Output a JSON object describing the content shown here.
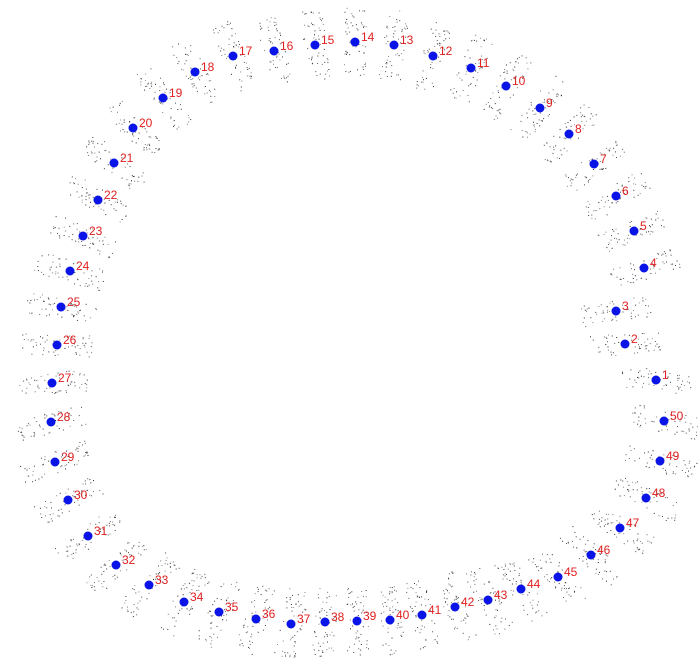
{
  "diagram": {
    "colors": {
      "point": "#0a14e6",
      "label": "#e02020",
      "speck": "#222222"
    },
    "points": [
      {
        "label": "1"
      },
      {
        "label": "2"
      },
      {
        "label": "3"
      },
      {
        "label": "4"
      },
      {
        "label": "5"
      },
      {
        "label": "6"
      },
      {
        "label": "7"
      },
      {
        "label": "8"
      },
      {
        "label": "9"
      },
      {
        "label": "10"
      },
      {
        "label": "11"
      },
      {
        "label": "12"
      },
      {
        "label": "13"
      },
      {
        "label": "14"
      },
      {
        "label": "15"
      },
      {
        "label": "16"
      },
      {
        "label": "17"
      },
      {
        "label": "18"
      },
      {
        "label": "19"
      },
      {
        "label": "20"
      },
      {
        "label": "21"
      },
      {
        "label": "22"
      },
      {
        "label": "23"
      },
      {
        "label": "24"
      },
      {
        "label": "25"
      },
      {
        "label": "26"
      },
      {
        "label": "27"
      },
      {
        "label": "28"
      },
      {
        "label": "29"
      },
      {
        "label": "30"
      },
      {
        "label": "31"
      },
      {
        "label": "32"
      },
      {
        "label": "33"
      },
      {
        "label": "34"
      },
      {
        "label": "35"
      },
      {
        "label": "36"
      },
      {
        "label": "37"
      },
      {
        "label": "38"
      },
      {
        "label": "39"
      },
      {
        "label": "40"
      },
      {
        "label": "41"
      },
      {
        "label": "42"
      },
      {
        "label": "43"
      },
      {
        "label": "44"
      },
      {
        "label": "45"
      },
      {
        "label": "46"
      },
      {
        "label": "47"
      },
      {
        "label": "48"
      },
      {
        "label": "49"
      },
      {
        "label": "50"
      }
    ]
  }
}
